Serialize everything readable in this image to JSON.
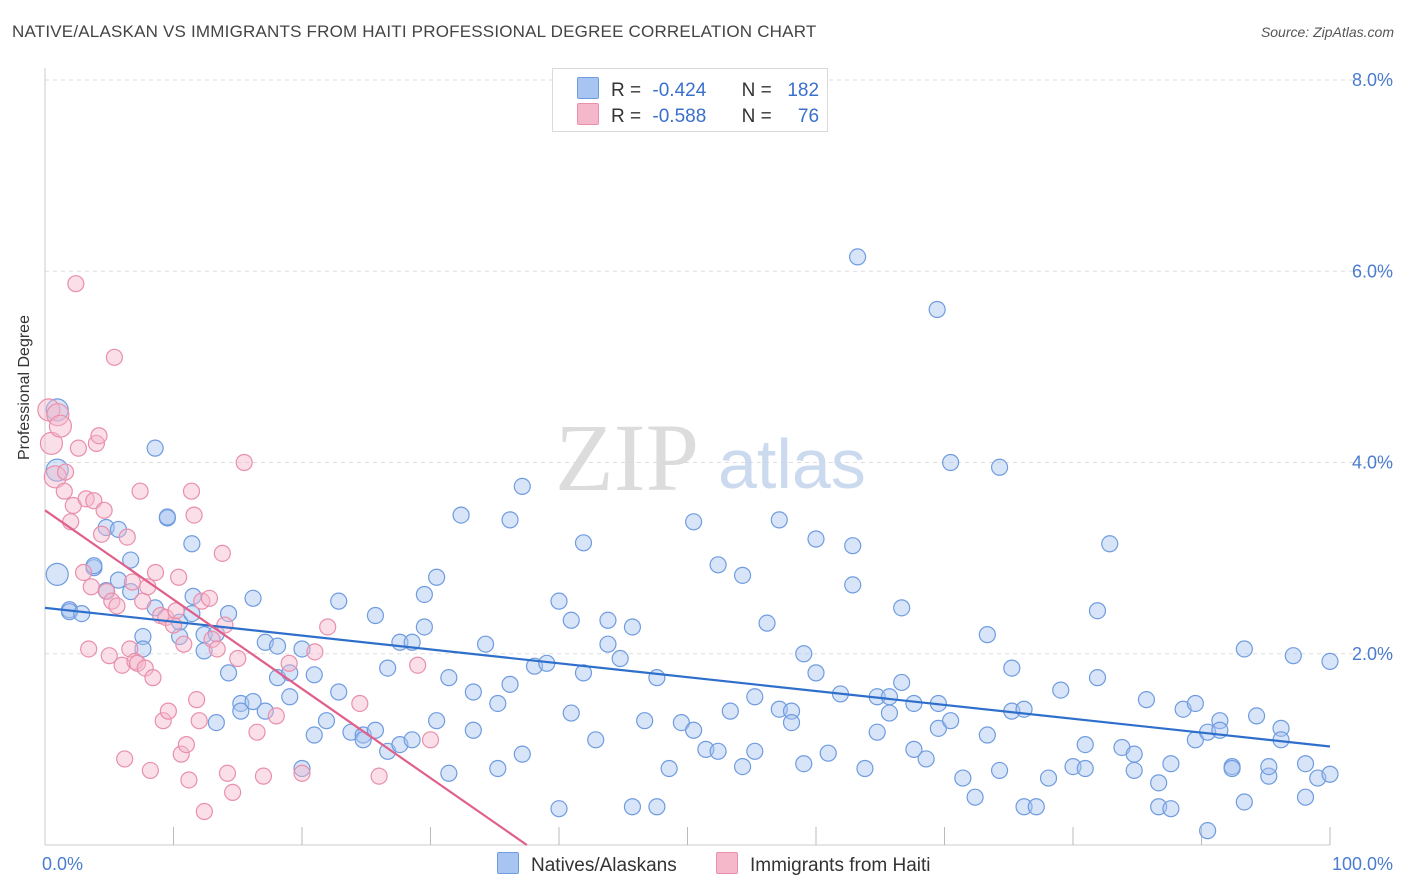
{
  "header": {
    "title": "NATIVE/ALASKAN VS IMMIGRANTS FROM HAITI PROFESSIONAL DEGREE CORRELATION CHART",
    "source": "Source: ZipAtlas.com"
  },
  "watermark": {
    "zip": "ZIP",
    "atlas": "atlas"
  },
  "legend_top": [
    {
      "r_label": "R =",
      "r_value": "-0.424",
      "n_label": "N =",
      "n_value": "182",
      "color": "#a8c4f0"
    },
    {
      "r_label": "R =",
      "r_value": "-0.588",
      "n_label": "N =",
      "n_value": "76",
      "color": "#f5b8cb"
    }
  ],
  "legend_bottom": [
    {
      "label": "Natives/Alaskans",
      "color": "#a8c4f0"
    },
    {
      "label": "Immigrants from Haiti",
      "color": "#f5b8cb"
    }
  ],
  "colors": {
    "blue_fill": "#a8c4f0",
    "blue_stroke": "#6f9ce0",
    "blue_line": "#2f6fcc",
    "pink_fill": "#f5b8cb",
    "pink_stroke": "#e98fab",
    "pink_line": "#e0608a",
    "grid": "#dddddd",
    "axis_text": "#4a7cd0"
  },
  "chart_data": {
    "type": "scatter",
    "title": "NATIVE/ALASKAN VS IMMIGRANTS FROM HAITI PROFESSIONAL DEGREE CORRELATION CHART",
    "xlabel": "",
    "ylabel": "Professional Degree",
    "xlim": [
      0,
      100
    ],
    "ylim": [
      0,
      8.0
    ],
    "y_ticks": [
      {
        "value": 2.0,
        "label": "2.0%"
      },
      {
        "value": 4.0,
        "label": "4.0%"
      },
      {
        "value": 6.0,
        "label": "6.0%"
      },
      {
        "value": 8.0,
        "label": "8.0%"
      }
    ],
    "x_tick_labels": [
      {
        "value": 0,
        "label": "0.0%"
      },
      {
        "value": 100,
        "label": "100.0%"
      }
    ],
    "grid": true,
    "legend_position": "top-center",
    "series": [
      {
        "name": "Natives/Alaskans",
        "r": -0.424,
        "n": 182,
        "trend": {
          "x": [
            0,
            100
          ],
          "y": [
            2.48,
            1.03
          ]
        },
        "points": [
          [
            1,
            4.55
          ],
          [
            1,
            3.92
          ],
          [
            1,
            2.83
          ],
          [
            2,
            2.46
          ],
          [
            2,
            2.44
          ],
          [
            3,
            2.42
          ],
          [
            4,
            2.9
          ],
          [
            4,
            2.92
          ],
          [
            5,
            3.32
          ],
          [
            5,
            2.66
          ],
          [
            6,
            3.3
          ],
          [
            6,
            2.77
          ],
          [
            7,
            2.98
          ],
          [
            7,
            2.65
          ],
          [
            8,
            2.18
          ],
          [
            8,
            2.05
          ],
          [
            9,
            2.48
          ],
          [
            9,
            4.15
          ],
          [
            10,
            3.42
          ],
          [
            10,
            3.43
          ],
          [
            11,
            2.33
          ],
          [
            11,
            2.18
          ],
          [
            12,
            3.15
          ],
          [
            12,
            2.42
          ],
          [
            13,
            2.2
          ],
          [
            13,
            2.03
          ],
          [
            14,
            1.28
          ],
          [
            14,
            2.21
          ],
          [
            15,
            1.8
          ],
          [
            15,
            2.42
          ],
          [
            16,
            1.48
          ],
          [
            16,
            1.4
          ],
          [
            17,
            2.58
          ],
          [
            17,
            1.5
          ],
          [
            18,
            1.4
          ],
          [
            18,
            2.12
          ],
          [
            19,
            2.08
          ],
          [
            19,
            1.75
          ],
          [
            20,
            1.55
          ],
          [
            20,
            1.8
          ],
          [
            21,
            2.05
          ],
          [
            21,
            0.8
          ],
          [
            22,
            1.15
          ],
          [
            22,
            1.78
          ],
          [
            23,
            1.3
          ],
          [
            24,
            2.55
          ],
          [
            24,
            1.6
          ],
          [
            25,
            1.18
          ],
          [
            26,
            1.15
          ],
          [
            26,
            1.1
          ],
          [
            27,
            2.4
          ],
          [
            27,
            1.2
          ],
          [
            28,
            1.85
          ],
          [
            28,
            0.98
          ],
          [
            29,
            2.12
          ],
          [
            29,
            1.05
          ],
          [
            30,
            1.1
          ],
          [
            30,
            2.12
          ],
          [
            31,
            2.62
          ],
          [
            31,
            2.28
          ],
          [
            32,
            1.3
          ],
          [
            32,
            2.8
          ],
          [
            33,
            1.75
          ],
          [
            33,
            0.75
          ],
          [
            34,
            3.45
          ],
          [
            35,
            1.6
          ],
          [
            35,
            1.2
          ],
          [
            36,
            2.1
          ],
          [
            37,
            1.48
          ],
          [
            37,
            0.8
          ],
          [
            38,
            3.4
          ],
          [
            38,
            1.68
          ],
          [
            39,
            3.75
          ],
          [
            39,
            0.95
          ],
          [
            40,
            1.87
          ],
          [
            41,
            1.9
          ],
          [
            42,
            2.55
          ],
          [
            42,
            0.38
          ],
          [
            43,
            2.35
          ],
          [
            43,
            1.38
          ],
          [
            44,
            1.8
          ],
          [
            44,
            3.16
          ],
          [
            45,
            1.1
          ],
          [
            46,
            2.35
          ],
          [
            46,
            2.1
          ],
          [
            47,
            1.95
          ],
          [
            48,
            2.28
          ],
          [
            48,
            0.4
          ],
          [
            49,
            1.3
          ],
          [
            50,
            1.75
          ],
          [
            50,
            0.4
          ],
          [
            51,
            0.8
          ],
          [
            52,
            1.28
          ],
          [
            53,
            3.38
          ],
          [
            53,
            1.2
          ],
          [
            54,
            1.0
          ],
          [
            55,
            2.93
          ],
          [
            55,
            0.98
          ],
          [
            56,
            1.4
          ],
          [
            57,
            2.82
          ],
          [
            57,
            0.82
          ],
          [
            58,
            1.55
          ],
          [
            58,
            0.98
          ],
          [
            59,
            2.32
          ],
          [
            60,
            1.42
          ],
          [
            60,
            3.4
          ],
          [
            61,
            1.4
          ],
          [
            61,
            1.28
          ],
          [
            62,
            2.0
          ],
          [
            62,
            0.85
          ],
          [
            63,
            1.8
          ],
          [
            63,
            3.2
          ],
          [
            64,
            0.96
          ],
          [
            65,
            1.58
          ],
          [
            66,
            2.72
          ],
          [
            66,
            3.13
          ],
          [
            67,
            0.8
          ],
          [
            68,
            1.55
          ],
          [
            68,
            1.18
          ],
          [
            69,
            1.38
          ],
          [
            69,
            1.55
          ],
          [
            70,
            2.48
          ],
          [
            70,
            1.7
          ],
          [
            71,
            1.48
          ],
          [
            71,
            1.0
          ],
          [
            72,
            0.9
          ],
          [
            73,
            1.48
          ],
          [
            73,
            1.22
          ],
          [
            74,
            4.0
          ],
          [
            74,
            1.3
          ],
          [
            75,
            0.7
          ],
          [
            76,
            0.5
          ],
          [
            77,
            1.15
          ],
          [
            77,
            2.2
          ],
          [
            78,
            3.95
          ],
          [
            78,
            0.78
          ],
          [
            79,
            1.85
          ],
          [
            79,
            1.4
          ],
          [
            80,
            1.42
          ],
          [
            80,
            0.4
          ],
          [
            81,
            0.4
          ],
          [
            82,
            0.7
          ],
          [
            83,
            1.62
          ],
          [
            84,
            0.82
          ],
          [
            85,
            1.05
          ],
          [
            85,
            0.8
          ],
          [
            86,
            1.75
          ],
          [
            86,
            2.45
          ],
          [
            87,
            3.15
          ],
          [
            88,
            1.02
          ],
          [
            89,
            0.78
          ],
          [
            89,
            0.95
          ],
          [
            90,
            1.52
          ],
          [
            91,
            0.65
          ],
          [
            91,
            0.4
          ],
          [
            92,
            0.85
          ],
          [
            92,
            0.38
          ],
          [
            93,
            1.42
          ],
          [
            94,
            1.48
          ],
          [
            94,
            1.1
          ],
          [
            95,
            1.18
          ],
          [
            95,
            0.15
          ],
          [
            96,
            1.3
          ],
          [
            96,
            1.2
          ],
          [
            97,
            0.82
          ],
          [
            97,
            0.8
          ],
          [
            98,
            2.05
          ],
          [
            98,
            0.45
          ],
          [
            99,
            1.35
          ],
          [
            100,
            0.72
          ],
          [
            100,
            0.82
          ],
          [
            101,
            1.22
          ],
          [
            101,
            1.1
          ],
          [
            102,
            1.98
          ],
          [
            103,
            0.5
          ],
          [
            103,
            0.85
          ],
          [
            104,
            0.7
          ],
          [
            105,
            1.92
          ],
          [
            105,
            0.74
          ],
          [
            66.4,
            6.15
          ],
          [
            72.9,
            5.6
          ],
          [
            12.1,
            2.6
          ]
        ]
      },
      {
        "name": "Immigrants from Haiti",
        "r": -0.588,
        "n": 76,
        "trend": {
          "x": [
            0,
            37.5
          ],
          "y": [
            3.5,
            0.0
          ]
        },
        "points": [
          [
            0.3,
            4.55
          ],
          [
            0.5,
            4.2
          ],
          [
            0.8,
            3.85
          ],
          [
            1,
            4.5
          ],
          [
            1.2,
            4.38
          ],
          [
            1.5,
            3.7
          ],
          [
            1.6,
            3.9
          ],
          [
            2,
            3.38
          ],
          [
            2.2,
            3.55
          ],
          [
            2.4,
            5.87
          ],
          [
            2.6,
            4.15
          ],
          [
            3,
            2.85
          ],
          [
            3.2,
            3.62
          ],
          [
            3.4,
            2.05
          ],
          [
            3.6,
            2.7
          ],
          [
            3.8,
            3.6
          ],
          [
            4,
            4.2
          ],
          [
            4.2,
            4.28
          ],
          [
            4.4,
            3.25
          ],
          [
            4.6,
            3.5
          ],
          [
            4.8,
            2.65
          ],
          [
            5,
            1.98
          ],
          [
            5.2,
            2.55
          ],
          [
            5.4,
            5.1
          ],
          [
            5.6,
            2.5
          ],
          [
            6,
            1.88
          ],
          [
            6.2,
            0.9
          ],
          [
            6.4,
            3.22
          ],
          [
            6.6,
            2.05
          ],
          [
            6.8,
            2.75
          ],
          [
            7,
            1.92
          ],
          [
            7.2,
            1.9
          ],
          [
            7.4,
            3.7
          ],
          [
            7.6,
            2.55
          ],
          [
            7.8,
            1.85
          ],
          [
            8,
            2.7
          ],
          [
            8.2,
            0.78
          ],
          [
            8.4,
            1.75
          ],
          [
            8.6,
            2.85
          ],
          [
            9,
            2.4
          ],
          [
            9.2,
            1.3
          ],
          [
            9.4,
            2.38
          ],
          [
            9.6,
            1.4
          ],
          [
            10,
            2.3
          ],
          [
            10.2,
            2.45
          ],
          [
            10.4,
            2.8
          ],
          [
            10.6,
            0.95
          ],
          [
            10.8,
            2.1
          ],
          [
            11,
            1.05
          ],
          [
            11.2,
            0.68
          ],
          [
            11.4,
            3.7
          ],
          [
            11.6,
            3.45
          ],
          [
            11.8,
            1.52
          ],
          [
            12,
            1.3
          ],
          [
            12.2,
            2.55
          ],
          [
            12.4,
            0.35
          ],
          [
            12.8,
            2.58
          ],
          [
            13,
            2.15
          ],
          [
            13.4,
            2.05
          ],
          [
            13.8,
            3.05
          ],
          [
            14,
            2.3
          ],
          [
            14.2,
            0.75
          ],
          [
            14.6,
            0.55
          ],
          [
            15,
            1.95
          ],
          [
            15.5,
            4.0
          ],
          [
            16.5,
            1.18
          ],
          [
            17,
            0.72
          ],
          [
            18,
            1.35
          ],
          [
            19,
            1.9
          ],
          [
            20,
            0.75
          ],
          [
            21,
            2.02
          ],
          [
            22,
            2.28
          ],
          [
            24.5,
            1.48
          ],
          [
            26,
            0.72
          ],
          [
            29,
            1.88
          ],
          [
            30,
            1.1
          ]
        ]
      }
    ]
  }
}
